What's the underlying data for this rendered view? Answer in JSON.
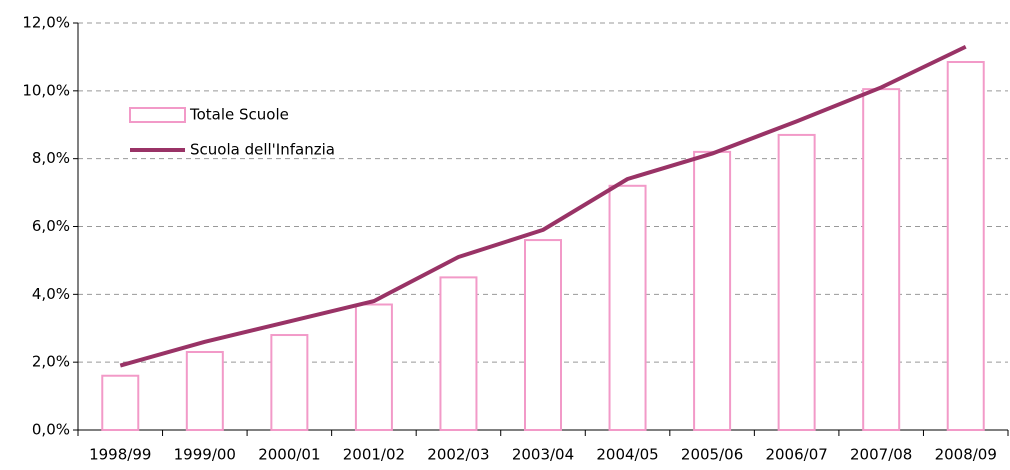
{
  "chart_data": {
    "type": "bar",
    "categories": [
      "1998/99",
      "1999/00",
      "2000/01",
      "2001/02",
      "2002/03",
      "2003/04",
      "2004/05",
      "2005/06",
      "2006/07",
      "2007/08",
      "2008/09"
    ],
    "series": [
      {
        "name": "Totale Scuole",
        "type": "bar",
        "color": "#f29ac8",
        "values": [
          1.6,
          2.3,
          2.8,
          3.7,
          4.5,
          5.6,
          7.2,
          8.2,
          8.7,
          10.05,
          10.85
        ]
      },
      {
        "name": "Scuola dell'Infanzia",
        "type": "line",
        "color": "#993366",
        "values": [
          1.9,
          2.6,
          3.2,
          3.8,
          5.1,
          5.9,
          7.4,
          8.15,
          9.1,
          10.1,
          11.3
        ]
      }
    ],
    "ylim": [
      0,
      12
    ],
    "yticks": [
      {
        "value": 0,
        "label": "0,0%"
      },
      {
        "value": 2,
        "label": "2,0%"
      },
      {
        "value": 4,
        "label": "4,0%"
      },
      {
        "value": 6,
        "label": "6,0%"
      },
      {
        "value": 8,
        "label": "8,0%"
      },
      {
        "value": 10,
        "label": "10,0%"
      },
      {
        "value": 12,
        "label": "12,0%"
      }
    ],
    "grid": true,
    "legend": "upper left"
  }
}
